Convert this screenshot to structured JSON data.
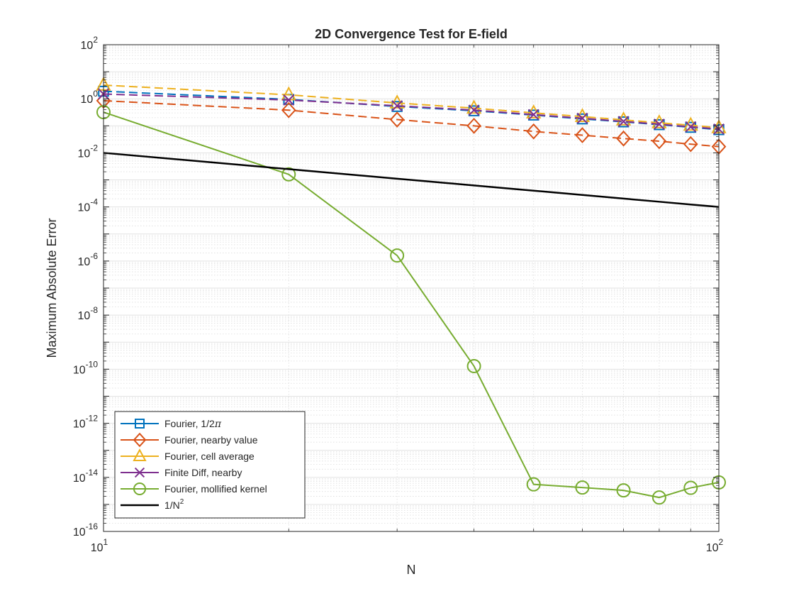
{
  "chart_data": {
    "type": "line",
    "title": "2D Convergence Test for E-field",
    "xlabel": "N",
    "ylabel": "Maximum Absolute Error",
    "x_scale": "log",
    "y_scale": "log",
    "xlim": [
      10,
      100
    ],
    "ylim": [
      1e-16,
      100
    ],
    "grid": true,
    "minor_grid": true,
    "legend_position": "bottom-left",
    "x_ticks": [
      {
        "base": "10",
        "exp": "1"
      },
      {
        "base": "10",
        "exp": "2"
      }
    ],
    "y_ticks": [
      {
        "base": "10",
        "exp": "2",
        "value": 100
      },
      {
        "base": "10",
        "exp": "0",
        "value": 1
      },
      {
        "base": "10",
        "exp": "-2",
        "value": 0.01
      },
      {
        "base": "10",
        "exp": "-4",
        "value": 0.0001
      },
      {
        "base": "10",
        "exp": "-6",
        "value": 1e-06
      },
      {
        "base": "10",
        "exp": "-8",
        "value": 1e-08
      },
      {
        "base": "10",
        "exp": "-10",
        "value": 1e-10
      },
      {
        "base": "10",
        "exp": "-12",
        "value": 1e-12
      },
      {
        "base": "10",
        "exp": "-14",
        "value": 1e-14
      },
      {
        "base": "10",
        "exp": "-16",
        "value": 1e-16
      }
    ],
    "x": [
      10,
      20,
      30,
      40,
      50,
      60,
      70,
      80,
      90,
      100
    ],
    "series": [
      {
        "name": "Fourier, 1/2π",
        "legend_main": "Fourier, 1/2",
        "legend_symbol": "π",
        "color": "#0072BD",
        "marker": "square",
        "line": "dashed",
        "values": [
          1.9,
          0.95,
          0.52,
          0.36,
          0.25,
          0.18,
          0.14,
          0.11,
          0.088,
          0.072
        ]
      },
      {
        "name": "Fourier, nearby value",
        "legend_main": "Fourier, nearby value",
        "color": "#D95319",
        "marker": "diamond",
        "line": "dashed",
        "values": [
          0.85,
          0.38,
          0.17,
          0.1,
          0.062,
          0.045,
          0.034,
          0.027,
          0.021,
          0.017
        ]
      },
      {
        "name": "Fourier, cell average",
        "legend_main": "Fourier, cell average",
        "color": "#EDB120",
        "marker": "triangle",
        "line": "dashed",
        "values": [
          3.2,
          1.4,
          0.7,
          0.45,
          0.3,
          0.22,
          0.165,
          0.13,
          0.105,
          0.085
        ]
      },
      {
        "name": "Finite Diff, nearby",
        "legend_main": "Finite Diff, nearby",
        "color": "#7E2F8E",
        "marker": "x",
        "line": "dashed",
        "values": [
          1.5,
          0.9,
          0.55,
          0.38,
          0.26,
          0.19,
          0.145,
          0.115,
          0.092,
          0.076
        ]
      },
      {
        "name": "Fourier, mollified kernel",
        "legend_main": "Fourier, mollified kernel",
        "color": "#77AC30",
        "marker": "circle",
        "line": "solid",
        "values": [
          0.32,
          0.0016,
          1.6e-06,
          1.3e-10,
          5.5e-15,
          4.2e-15,
          3.3e-15,
          1.8e-15,
          4.1e-15,
          6.5e-15
        ]
      },
      {
        "name": "1/N^2",
        "legend_main": "1/N",
        "legend_sup": "2",
        "color": "#000000",
        "marker": "none",
        "line": "solid",
        "values": [
          0.01,
          0.0025,
          0.00111,
          0.000625,
          0.0004,
          0.000278,
          0.000204,
          0.000156,
          0.000123,
          0.0001
        ]
      }
    ]
  }
}
